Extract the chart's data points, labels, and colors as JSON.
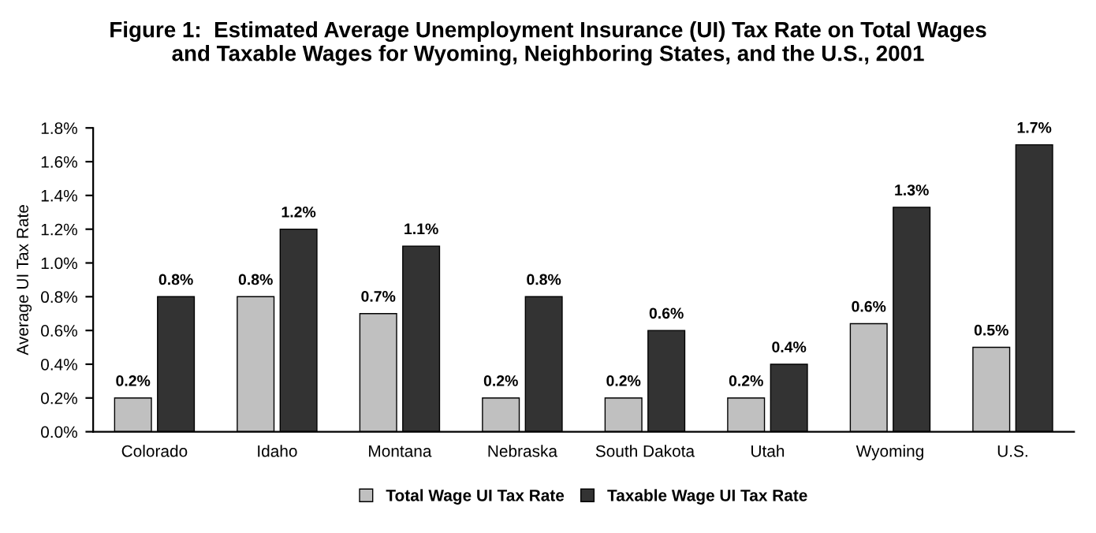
{
  "chart_data": {
    "type": "bar",
    "title": "Figure 1:  Estimated Average Unemployment Insurance (UI) Tax Rate on Total Wages\nand Taxable Wages for Wyoming, Neighboring States, and the U.S., 2001",
    "ylabel": "Average UI Tax Rate",
    "categories": [
      "Colorado",
      "Idaho",
      "Montana",
      "Nebraska",
      "South Dakota",
      "Utah",
      "Wyoming",
      "U.S."
    ],
    "series": [
      {
        "name": "Total Wage UI Tax Rate",
        "color": "#c0c0c0",
        "values": [
          0.2,
          0.8,
          0.7,
          0.2,
          0.2,
          0.2,
          0.64,
          0.5
        ],
        "value_labels": [
          "0.2%",
          "0.8%",
          "0.7%",
          "0.2%",
          "0.2%",
          "0.2%",
          "0.6%",
          "0.5%"
        ]
      },
      {
        "name": "Taxable Wage UI Tax Rate",
        "color": "#333333",
        "values": [
          0.8,
          1.2,
          1.1,
          0.8,
          0.6,
          0.4,
          1.33,
          1.7
        ],
        "value_labels": [
          "0.8%",
          "1.2%",
          "1.1%",
          "0.8%",
          "0.6%",
          "0.4%",
          "1.3%",
          "1.7%"
        ]
      }
    ],
    "ylim": [
      0,
      1.8
    ],
    "yticks": [
      {
        "value": 0,
        "label": "0.0%"
      },
      {
        "value": 0.2,
        "label": "0.2%"
      },
      {
        "value": 0.4,
        "label": "0.4%"
      },
      {
        "value": 0.6,
        "label": "0.6%"
      },
      {
        "value": 0.8,
        "label": "0.8%"
      },
      {
        "value": 1.0,
        "label": "1.0%"
      },
      {
        "value": 1.2,
        "label": "1.2%"
      },
      {
        "value": 1.4,
        "label": "1.4%"
      },
      {
        "value": 1.6,
        "label": "1.6%"
      },
      {
        "value": 1.8,
        "label": "1.8%"
      }
    ],
    "legend": "bottom",
    "grid": false
  }
}
